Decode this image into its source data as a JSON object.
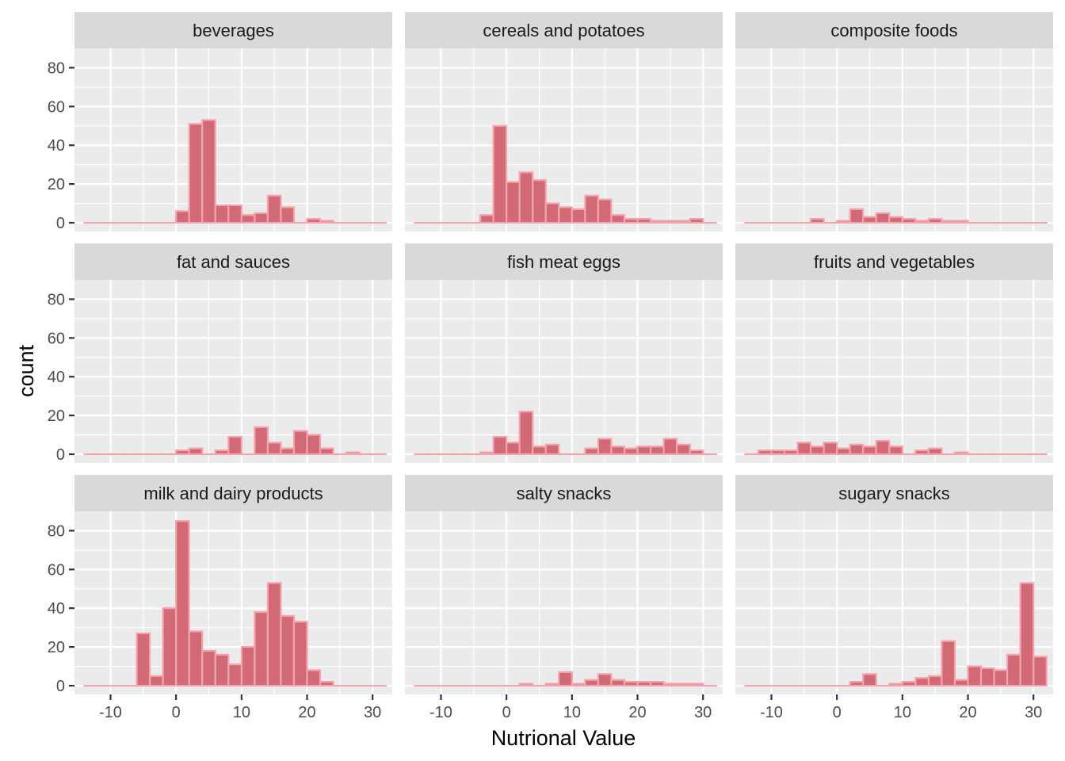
{
  "chart_data": {
    "type": "histogram-facets",
    "xlabel": "Nutrional Value",
    "ylabel": "count",
    "xlim": [
      -15.5,
      33
    ],
    "ylim": [
      -4.5,
      90
    ],
    "x_ticks": [
      -10,
      0,
      10,
      20,
      30
    ],
    "x_tick_labels": [
      "-10",
      "0",
      "10",
      "20",
      "30"
    ],
    "y_ticks": [
      0,
      20,
      40,
      60,
      80
    ],
    "y_tick_labels": [
      "0",
      "20",
      "40",
      "60",
      "80"
    ],
    "bin_width": 2,
    "bin_start": -14,
    "colors": {
      "bar_fill": "#d16a74",
      "bar_outline": "#f4a4ae",
      "panel_bg": "#ebebeb",
      "strip_bg": "#d9d9d9",
      "grid": "#ffffff"
    },
    "facets": [
      {
        "name": "beverages",
        "counts": [
          0,
          0,
          0,
          0,
          0,
          0,
          0,
          6,
          51,
          53,
          9,
          9,
          4,
          5,
          14,
          8,
          0,
          2,
          1,
          0,
          0,
          0,
          0
        ]
      },
      {
        "name": "cereals and potatoes",
        "counts": [
          0,
          0,
          0,
          0,
          0,
          4,
          50,
          21,
          26,
          22,
          10,
          8,
          7,
          14,
          12,
          4,
          2,
          2,
          1,
          1,
          1,
          2,
          0
        ]
      },
      {
        "name": "composite foods",
        "counts": [
          0,
          0,
          0,
          0,
          0,
          2,
          0,
          1,
          7,
          3,
          5,
          3,
          2,
          1,
          2,
          1,
          1,
          0,
          0,
          0,
          0,
          0,
          0
        ]
      },
      {
        "name": "fat and sauces",
        "counts": [
          0,
          0,
          0,
          0,
          0,
          0,
          0,
          2,
          3,
          0,
          2,
          9,
          0,
          14,
          6,
          3,
          12,
          10,
          3,
          0,
          1,
          0,
          0
        ]
      },
      {
        "name": "fish meat eggs",
        "counts": [
          0,
          0,
          0,
          0,
          0,
          1,
          9,
          6,
          22,
          4,
          5,
          0,
          0,
          3,
          8,
          4,
          3,
          4,
          4,
          8,
          5,
          2,
          0
        ]
      },
      {
        "name": "fruits and vegetables",
        "counts": [
          0,
          2,
          2,
          2,
          6,
          4,
          6,
          3,
          5,
          4,
          7,
          4,
          0,
          2,
          3,
          0,
          1,
          0,
          0,
          0,
          0,
          0,
          0
        ]
      },
      {
        "name": "milk and dairy products",
        "counts": [
          0,
          0,
          0,
          0,
          27,
          5,
          40,
          85,
          28,
          18,
          16,
          11,
          20,
          38,
          53,
          36,
          33,
          8,
          2,
          0,
          0,
          0,
          0
        ]
      },
      {
        "name": "salty snacks",
        "counts": [
          0,
          0,
          0,
          0,
          0,
          0,
          0,
          0,
          1,
          0,
          1,
          7,
          1,
          3,
          6,
          3,
          2,
          2,
          2,
          1,
          1,
          1,
          0
        ]
      },
      {
        "name": "sugary snacks",
        "counts": [
          0,
          0,
          0,
          0,
          0,
          0,
          0,
          0,
          2,
          6,
          0,
          1,
          2,
          4,
          5,
          23,
          3,
          10,
          9,
          8,
          16,
          53,
          15
        ]
      }
    ]
  }
}
